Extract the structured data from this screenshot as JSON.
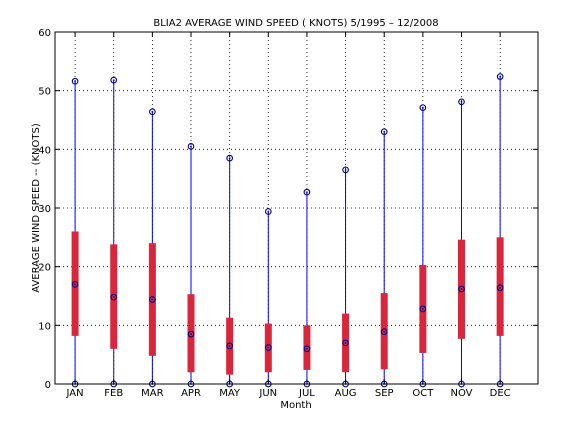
{
  "chart_data": {
    "type": "boxplot",
    "title": "BLIA2  AVERAGE WIND SPEED ( KNOTS) 5/1995 – 12/2008",
    "xlabel": "Month",
    "ylabel": "AVERAGE WIND SPEED -- (KNOTS)",
    "ylim": [
      0,
      60
    ],
    "yticks": [
      "0",
      "10",
      "20",
      "30",
      "40",
      "50",
      "60"
    ],
    "grid": true,
    "categories": [
      "JAN",
      "FEB",
      "MAR",
      "APR",
      "MAY",
      "JUN",
      "JUL",
      "AUG",
      "SEP",
      "OCT",
      "NOV",
      "DEC"
    ],
    "series": [
      {
        "stat": "min",
        "values": [
          0,
          0,
          0,
          0,
          0,
          0,
          0,
          0,
          0,
          0,
          0,
          0
        ]
      },
      {
        "stat": "q1",
        "values": [
          8.2,
          6.0,
          4.8,
          2.0,
          1.6,
          2.0,
          2.4,
          2.0,
          2.5,
          5.3,
          7.7,
          8.2
        ]
      },
      {
        "stat": "median",
        "values": [
          17.0,
          14.8,
          14.4,
          8.5,
          6.5,
          6.2,
          6.0,
          7.0,
          8.9,
          12.8,
          16.2,
          16.4
        ]
      },
      {
        "stat": "q3",
        "values": [
          26.0,
          23.8,
          24.0,
          15.3,
          11.3,
          10.3,
          10.0,
          12.0,
          15.5,
          20.3,
          24.6,
          25.0
        ]
      },
      {
        "stat": "max",
        "values": [
          51.6,
          51.8,
          46.4,
          40.5,
          38.5,
          29.4,
          32.7,
          36.5,
          43.0,
          47.1,
          48.1,
          52.4
        ]
      }
    ],
    "colors": {
      "whisker": "#0000ff",
      "box": "#d9263d",
      "marker": "#00008b",
      "grid": "#000000"
    }
  }
}
